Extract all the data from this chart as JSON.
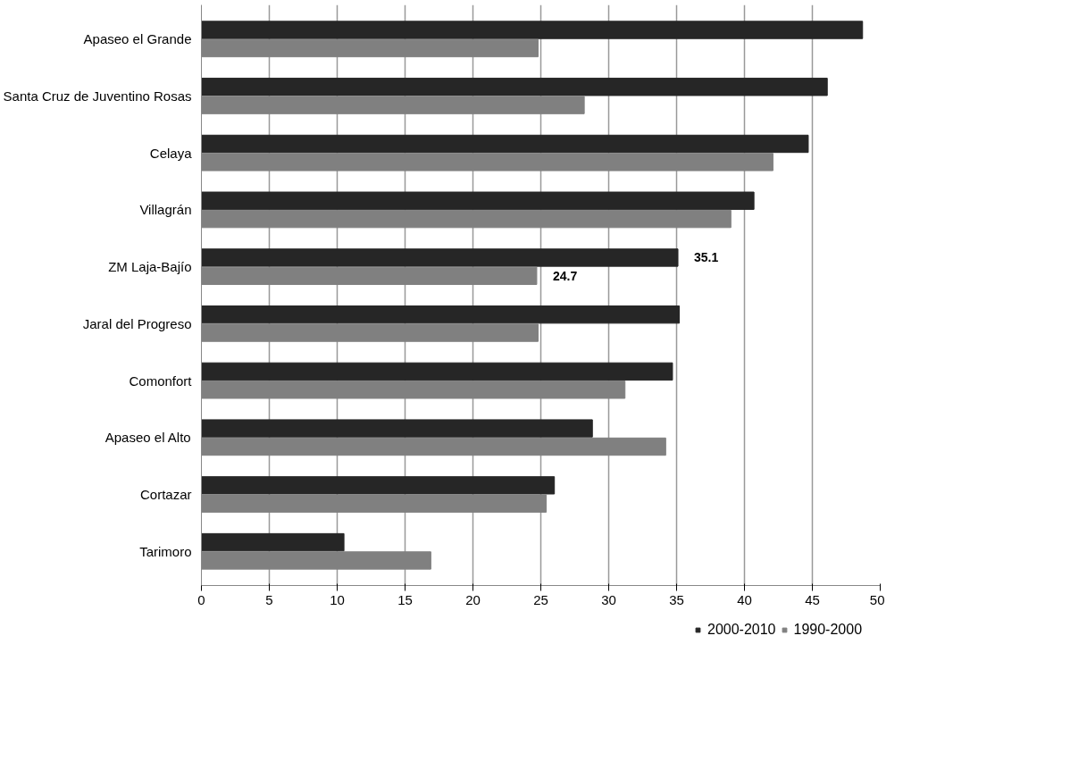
{
  "chart_data": {
    "type": "bar",
    "orientation": "horizontal",
    "categories": [
      "Apaseo el Grande",
      "Santa Cruz de Juventino Rosas",
      "Celaya",
      "Villagrán",
      "ZM Laja-Bajío",
      "Jaral del Progreso",
      "Comonfort",
      "Apaseo el Alto",
      "Cortazar",
      "Tarimoro"
    ],
    "series": [
      {
        "name": "2000-2010",
        "color": "#262626",
        "values": [
          48.7,
          46.1,
          44.7,
          40.7,
          35.1,
          35.2,
          34.7,
          28.8,
          26.0,
          10.5
        ],
        "value_labels": [
          null,
          null,
          null,
          null,
          "35.1",
          null,
          null,
          null,
          null,
          null
        ]
      },
      {
        "name": "1990-2000",
        "color": "#808080",
        "values": [
          24.8,
          28.2,
          42.1,
          39.0,
          24.7,
          24.8,
          31.2,
          34.2,
          25.4,
          16.9
        ],
        "value_labels": [
          null,
          null,
          null,
          null,
          "24.7",
          null,
          null,
          null,
          null,
          null
        ]
      }
    ],
    "xlim": [
      0,
      50
    ],
    "xticks": [
      0,
      5,
      10,
      15,
      20,
      25,
      30,
      35,
      40,
      45,
      50
    ],
    "grid": "x",
    "legend": "bottom"
  }
}
